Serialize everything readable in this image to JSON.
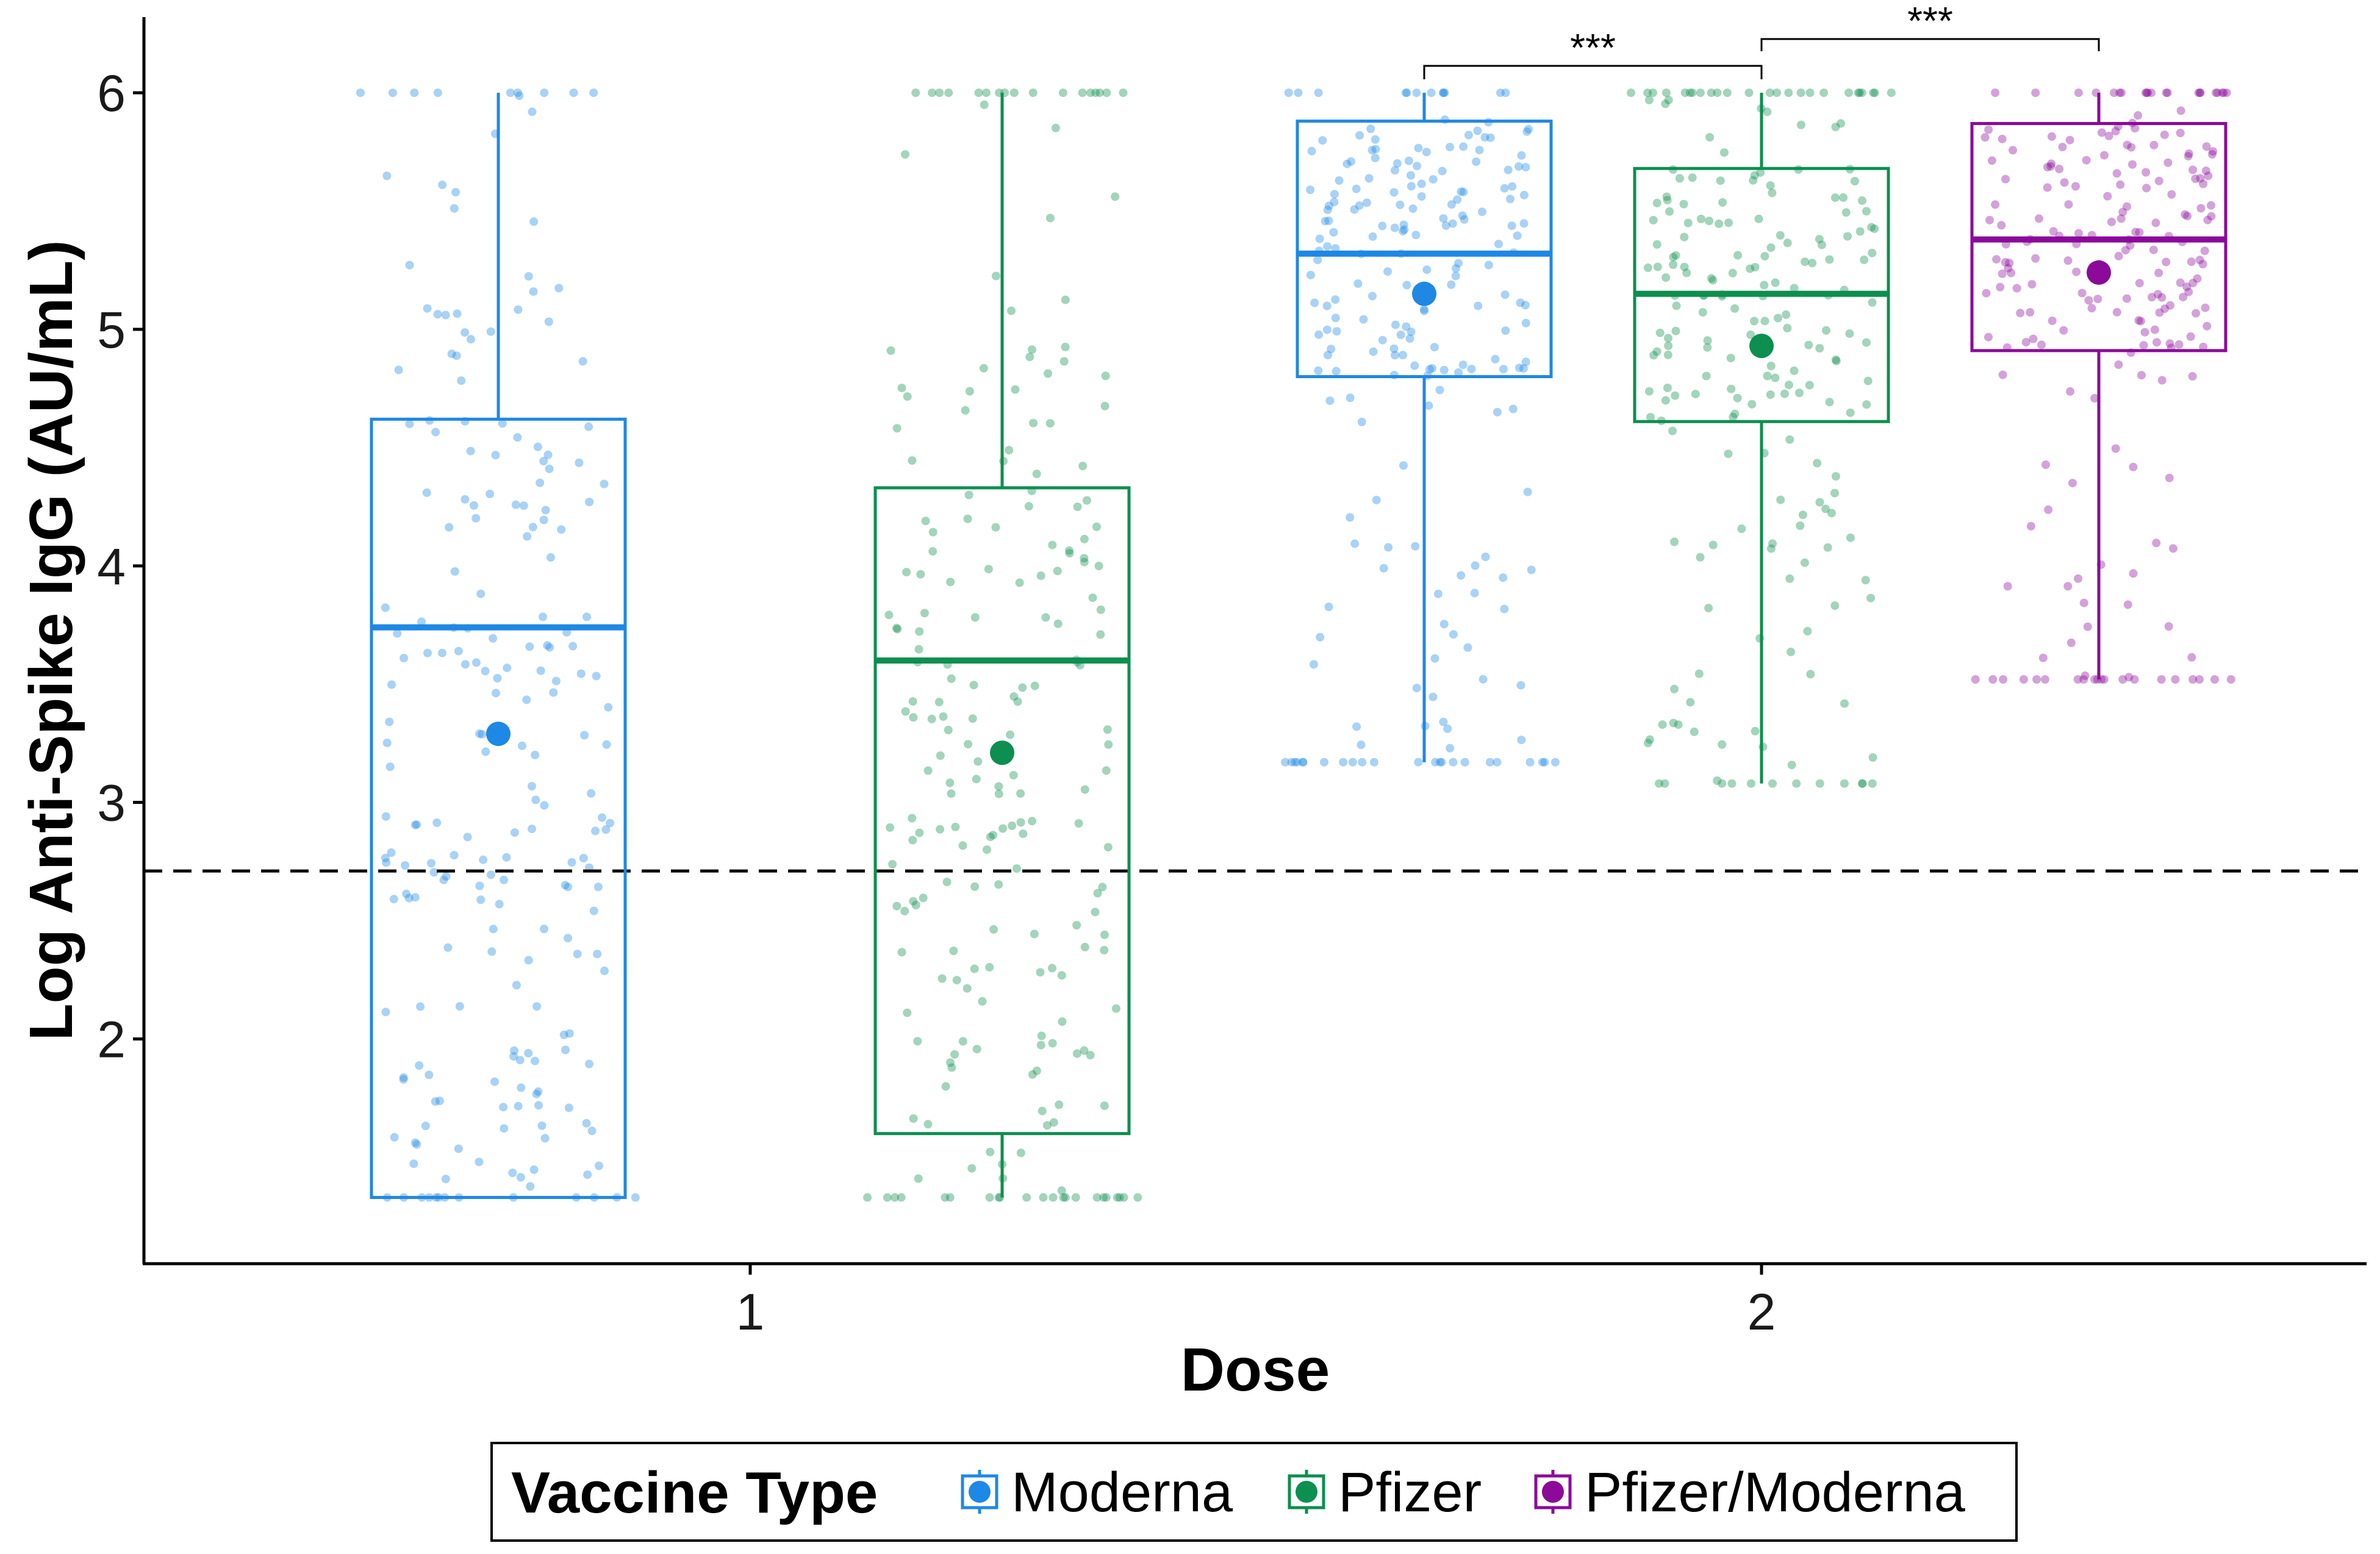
{
  "chart_data": {
    "type": "boxplot",
    "xlabel": "Dose",
    "ylabel": "Log Anti-Spike IgG (AU/mL)",
    "ylim": [
      1.05,
      6.32
    ],
    "yticks": [
      2,
      3,
      4,
      5,
      6
    ],
    "categories": [
      "1",
      "2"
    ],
    "reference_line": {
      "y": 2.71,
      "style": "dashed"
    },
    "legend": {
      "title": "Vaccine Type",
      "position": "bottom"
    },
    "series": [
      {
        "name": "Moderna",
        "color": "#1e88e5",
        "boxes": [
          {
            "dose": "1",
            "min": 1.33,
            "q1": 1.33,
            "median": 3.74,
            "q3": 4.62,
            "max": 6.0,
            "mean": 3.29
          },
          {
            "dose": "2",
            "min": 3.17,
            "q1": 4.8,
            "median": 5.32,
            "q3": 5.88,
            "max": 6.0,
            "mean": 5.15
          }
        ]
      },
      {
        "name": "Pfizer",
        "color": "#0c8f4f",
        "boxes": [
          {
            "dose": "1",
            "min": 1.33,
            "q1": 1.6,
            "median": 3.6,
            "q3": 4.33,
            "max": 6.0,
            "mean": 3.21
          },
          {
            "dose": "2",
            "min": 3.08,
            "q1": 4.61,
            "median": 5.15,
            "q3": 5.68,
            "max": 6.0,
            "mean": 4.93
          }
        ]
      },
      {
        "name": "Pfizer/Moderna",
        "color": "#8b0a9a",
        "boxes": [
          {
            "dose": "2",
            "min": 3.52,
            "q1": 4.91,
            "median": 5.38,
            "q3": 5.87,
            "max": 6.0,
            "mean": 5.24
          }
        ]
      }
    ],
    "annotations": [
      {
        "text": "***",
        "from": "Moderna dose 2",
        "to": "Pfizer dose 2"
      },
      {
        "text": "***",
        "from": "Pfizer dose 2",
        "to": "Pfizer/Moderna dose 2"
      }
    ]
  }
}
